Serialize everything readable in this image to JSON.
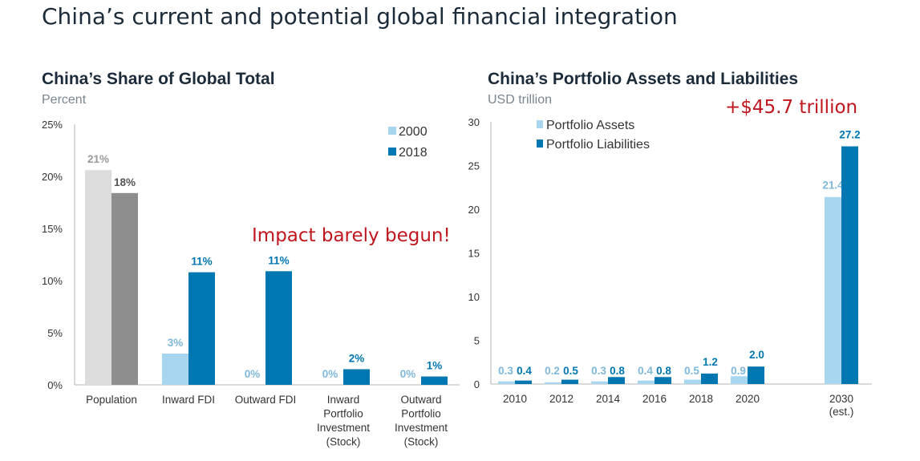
{
  "page_title": "China’s current and potential global financial integration",
  "colors": {
    "light_blue": "#a8d6ef",
    "dark_blue": "#0077b0",
    "light_gray": "#dcdcdc",
    "dark_gray": "#8e8e8e",
    "annotation_red": "#c0161e",
    "label_light_blue": "#7fb8da",
    "label_gray": "#9a9a9a"
  },
  "chart_data": [
    {
      "type": "bar",
      "title": "China’s Share of Global Total",
      "subtitle": "Percent",
      "categories": [
        [
          "Population"
        ],
        [
          "Inward FDI"
        ],
        [
          "Outward FDI"
        ],
        [
          "Inward",
          "Portfolio",
          "Investment",
          "(Stock)"
        ],
        [
          "Outward",
          "Portfolio",
          "Investment",
          "(Stock)"
        ]
      ],
      "series": [
        {
          "name": "2000",
          "values": [
            20.6,
            3.0,
            0,
            0,
            0
          ],
          "labels": [
            "21%",
            "3%",
            "0%",
            "0%",
            "0%"
          ]
        },
        {
          "name": "2018",
          "values": [
            18.4,
            10.8,
            10.9,
            1.5,
            0.8
          ],
          "labels": [
            "18%",
            "11%",
            "11%",
            "2%",
            "1%"
          ]
        }
      ],
      "y_ticks": [
        "0%",
        "5%",
        "10%",
        "15%",
        "20%",
        "25%"
      ],
      "ylim": [
        0,
        25
      ],
      "legend": [
        "2000",
        "2018"
      ],
      "legend_position": "top-right",
      "annotation": "Impact barely begun!",
      "grid": false
    },
    {
      "type": "bar",
      "title": "China’s Portfolio Assets and Liabilities",
      "subtitle": "USD trillion",
      "categories": [
        [
          "2010"
        ],
        [
          "2012"
        ],
        [
          "2014"
        ],
        [
          "2016"
        ],
        [
          "2018"
        ],
        [
          "2020"
        ],
        [
          "2030",
          "(est.)"
        ]
      ],
      "series": [
        {
          "name": "Portfolio Assets",
          "values": [
            0.3,
            0.2,
            0.3,
            0.4,
            0.5,
            0.9,
            21.4
          ],
          "labels": [
            "0.3",
            "0.2",
            "0.3",
            "0.4",
            "0.5",
            "0.9",
            "21.4"
          ]
        },
        {
          "name": "Portfolio Liabilities",
          "values": [
            0.4,
            0.5,
            0.8,
            0.8,
            1.2,
            2.0,
            27.2
          ],
          "labels": [
            "0.4",
            "0.5",
            "0.8",
            "0.8",
            "1.2",
            "2.0",
            "27.2"
          ]
        }
      ],
      "y_ticks": [
        "0",
        "5",
        "10",
        "15",
        "20",
        "25",
        "30"
      ],
      "ylim": [
        0,
        30
      ],
      "legend": [
        "Portfolio Assets",
        "Portfolio Liabilities"
      ],
      "legend_position": "top-left",
      "annotation": "+$45.7 trillion",
      "grid": false
    }
  ]
}
